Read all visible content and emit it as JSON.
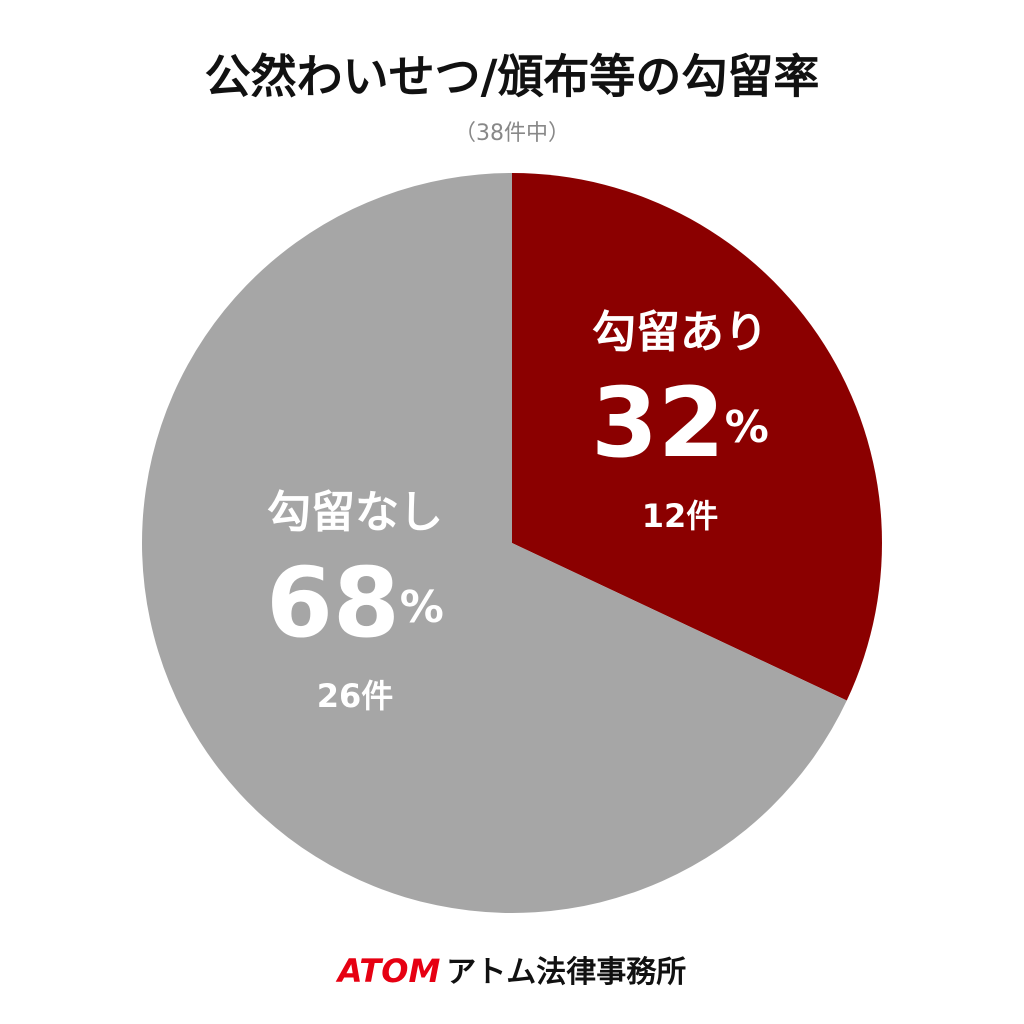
{
  "chart_data": {
    "type": "pie",
    "title": "公然わいせつ/頒布等の勾留率",
    "subtitle": "（38件中）",
    "categories": [
      "勾留あり",
      "勾留なし"
    ],
    "values": [
      32,
      68
    ],
    "value_labels": [
      "32%",
      "68%"
    ],
    "counts": [
      "12件",
      "26件"
    ],
    "colors": [
      "#8b0000",
      "#a6a6a6"
    ],
    "start_angle": "top",
    "direction": "clockwise"
  },
  "footer": {
    "brand": "ATOM",
    "name": "アトム法律事務所"
  }
}
